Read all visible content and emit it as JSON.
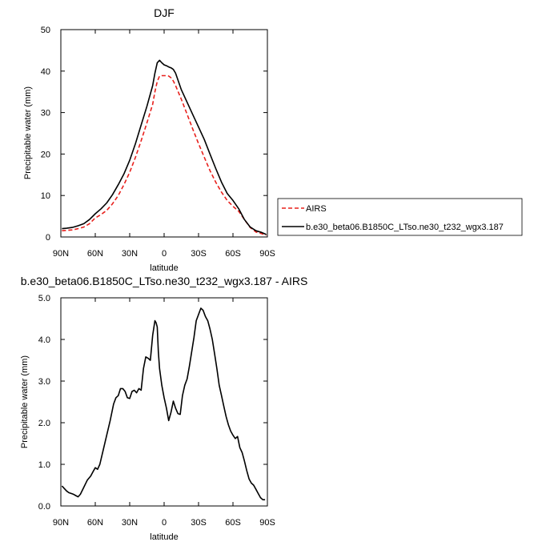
{
  "chart_data": [
    {
      "type": "line",
      "title": "DJF",
      "xlabel": "latitude",
      "ylabel": "Precipitable water (mm)",
      "xlim": [
        90,
        -90
      ],
      "ylim": [
        0,
        50
      ],
      "x_ticks": [
        90,
        60,
        30,
        0,
        -30,
        -60,
        -90
      ],
      "x_tick_labels": [
        "90N",
        "60N",
        "30N",
        "0",
        "30S",
        "60S",
        "90S"
      ],
      "y_ticks": [
        0,
        10,
        20,
        30,
        40,
        50
      ],
      "y_tick_labels": [
        "0",
        "10",
        "20",
        "30",
        "40",
        "50"
      ],
      "legend_position": "right",
      "series": [
        {
          "name": "AIRS",
          "color": "#e8201c",
          "dash": "dashed",
          "x": [
            89,
            85,
            80,
            75,
            70,
            65,
            60,
            55,
            50,
            45,
            40,
            35,
            30,
            25,
            20,
            15,
            10,
            8,
            6,
            4,
            2,
            0,
            -2,
            -4,
            -6,
            -8,
            -10,
            -15,
            -20,
            -25,
            -30,
            -35,
            -40,
            -45,
            -50,
            -55,
            -60,
            -65,
            -70,
            -75,
            -80,
            -85,
            -89
          ],
          "y": [
            1.5,
            1.6,
            1.7,
            2.0,
            2.4,
            3.2,
            4.6,
            5.4,
            6.4,
            8.0,
            10.0,
            12.6,
            15.6,
            19.2,
            23.2,
            27.5,
            32.0,
            35.0,
            37.5,
            38.8,
            38.9,
            38.9,
            38.9,
            38.8,
            38.4,
            37.6,
            36.5,
            33.2,
            29.6,
            26.0,
            22.5,
            19.2,
            16.0,
            13.2,
            10.8,
            8.8,
            7.4,
            6.2,
            4.2,
            2.3,
            1.2,
            0.8,
            0.4
          ]
        },
        {
          "name": "b.e30_beta06.B1850C_LTso.ne30_t232_wgx3.187",
          "color": "#000000",
          "dash": "solid",
          "x": [
            89,
            85,
            80,
            75,
            70,
            65,
            60,
            55,
            50,
            45,
            40,
            35,
            30,
            25,
            20,
            15,
            10,
            8,
            6,
            4,
            2,
            0,
            -2,
            -4,
            -6,
            -8,
            -10,
            -15,
            -20,
            -25,
            -30,
            -35,
            -40,
            -45,
            -50,
            -55,
            -60,
            -65,
            -70,
            -75,
            -80,
            -85,
            -89
          ],
          "y": [
            2.0,
            2.1,
            2.3,
            2.7,
            3.2,
            4.2,
            5.6,
            6.8,
            8.2,
            10.2,
            12.6,
            15.2,
            18.5,
            22.5,
            27.0,
            31.5,
            36.5,
            39.5,
            42.0,
            42.6,
            42.0,
            41.5,
            41.3,
            41.0,
            40.8,
            40.4,
            39.5,
            35.5,
            32.5,
            29.5,
            26.5,
            23.5,
            20.0,
            16.5,
            13.2,
            10.5,
            8.8,
            6.8,
            4.2,
            2.4,
            1.5,
            1.1,
            0.6
          ]
        }
      ]
    },
    {
      "type": "line",
      "title": "b.e30_beta06.B1850C_LTso.ne30_t232_wgx3.187 - AIRS",
      "xlabel": "latitude",
      "ylabel": "Precipitable water (mm)",
      "xlim": [
        90,
        -90
      ],
      "ylim": [
        0,
        5
      ],
      "x_ticks": [
        90,
        60,
        30,
        0,
        -30,
        -60,
        -90
      ],
      "x_tick_labels": [
        "90N",
        "60N",
        "30N",
        "0",
        "30S",
        "60S",
        "90S"
      ],
      "y_ticks": [
        0,
        1,
        2,
        3,
        4,
        5
      ],
      "y_tick_labels": [
        "0.0",
        "1.0",
        "2.0",
        "3.0",
        "4.0",
        "5.0"
      ],
      "series": [
        {
          "color": "#000000",
          "dash": "solid",
          "x": [
            89,
            87,
            85,
            83,
            81,
            79,
            77,
            75,
            73,
            70,
            67,
            64,
            62,
            60,
            58,
            56,
            53,
            50,
            47,
            44,
            42,
            40,
            38,
            36,
            34,
            32,
            30,
            28,
            26,
            24,
            22,
            20,
            18,
            16,
            14,
            12,
            10,
            8,
            7,
            6,
            5,
            4,
            2,
            0,
            -2,
            -4,
            -6,
            -8,
            -10,
            -12,
            -14,
            -16,
            -18,
            -20,
            -22,
            -24,
            -26,
            -28,
            -30,
            -32,
            -34,
            -36,
            -38,
            -40,
            -42,
            -44,
            -46,
            -48,
            -50,
            -52,
            -54,
            -56,
            -58,
            -60,
            -62,
            -64,
            -66,
            -68,
            -70,
            -72,
            -74,
            -76,
            -78,
            -80,
            -82,
            -84,
            -86,
            -88
          ],
          "y": [
            0.48,
            0.42,
            0.36,
            0.32,
            0.3,
            0.28,
            0.25,
            0.22,
            0.28,
            0.45,
            0.62,
            0.72,
            0.82,
            0.92,
            0.88,
            1.0,
            1.35,
            1.7,
            2.05,
            2.45,
            2.6,
            2.65,
            2.82,
            2.82,
            2.75,
            2.6,
            2.58,
            2.75,
            2.78,
            2.72,
            2.82,
            2.78,
            3.3,
            3.58,
            3.55,
            3.5,
            4.1,
            4.45,
            4.4,
            4.3,
            3.7,
            3.3,
            2.9,
            2.6,
            2.35,
            2.05,
            2.25,
            2.52,
            2.35,
            2.22,
            2.2,
            2.65,
            2.9,
            3.05,
            3.35,
            3.7,
            4.05,
            4.45,
            4.6,
            4.75,
            4.7,
            4.55,
            4.45,
            4.25,
            4.0,
            3.65,
            3.3,
            2.9,
            2.65,
            2.4,
            2.15,
            1.95,
            1.8,
            1.7,
            1.62,
            1.67,
            1.4,
            1.28,
            1.08,
            0.85,
            0.65,
            0.55,
            0.5,
            0.4,
            0.3,
            0.2,
            0.15,
            0.15
          ]
        }
      ]
    }
  ]
}
